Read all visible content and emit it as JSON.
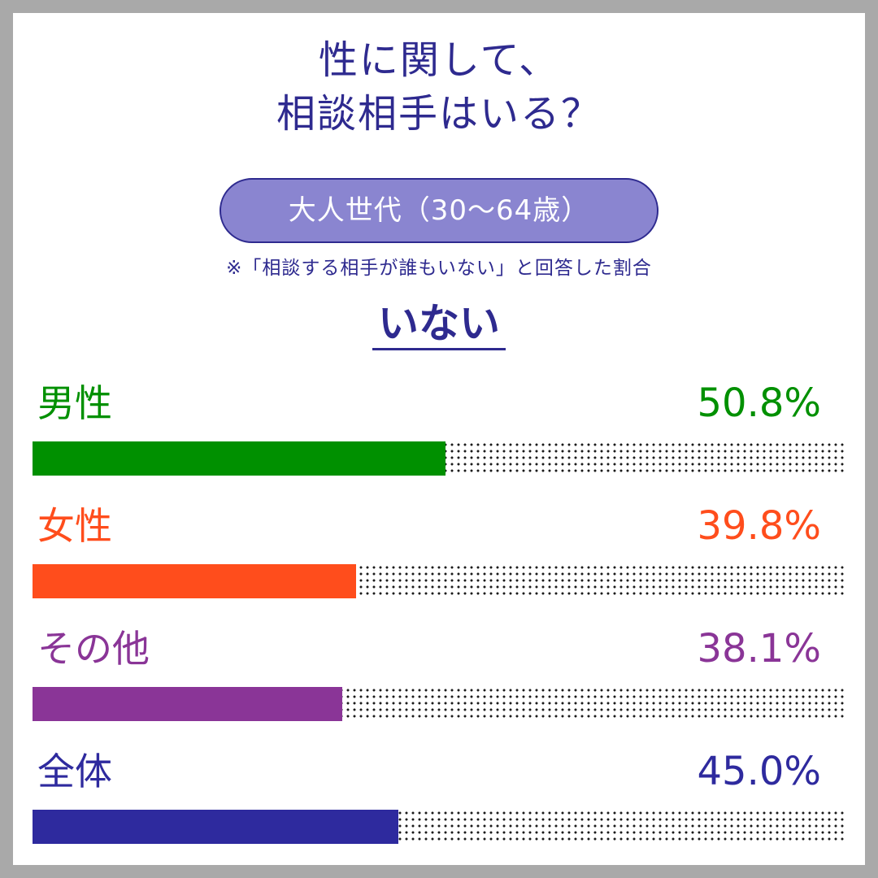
{
  "title": {
    "line1": "性に関して、",
    "line2": "相談相手はいる？"
  },
  "group_label": "大人世代（30～64歳）",
  "note": "※「相談する相手が誰もいない」と回答した割合",
  "heading": "いない",
  "chart_data": {
    "type": "bar",
    "orientation": "horizontal",
    "title": "性に関して、相談相手はいる？",
    "subtitle": "大人世代（30～64歳）",
    "series_label": "いない",
    "categories": [
      "男性",
      "女性",
      "その他",
      "全体"
    ],
    "values": [
      50.8,
      39.8,
      38.1,
      45.0
    ],
    "value_labels": [
      "50.8%",
      "39.8%",
      "38.1%",
      "45.0%"
    ],
    "colors": [
      "#009000",
      "#ff4d1c",
      "#8a3597",
      "#2e2a9e"
    ],
    "xlim": [
      0,
      100
    ],
    "unit": "%"
  }
}
